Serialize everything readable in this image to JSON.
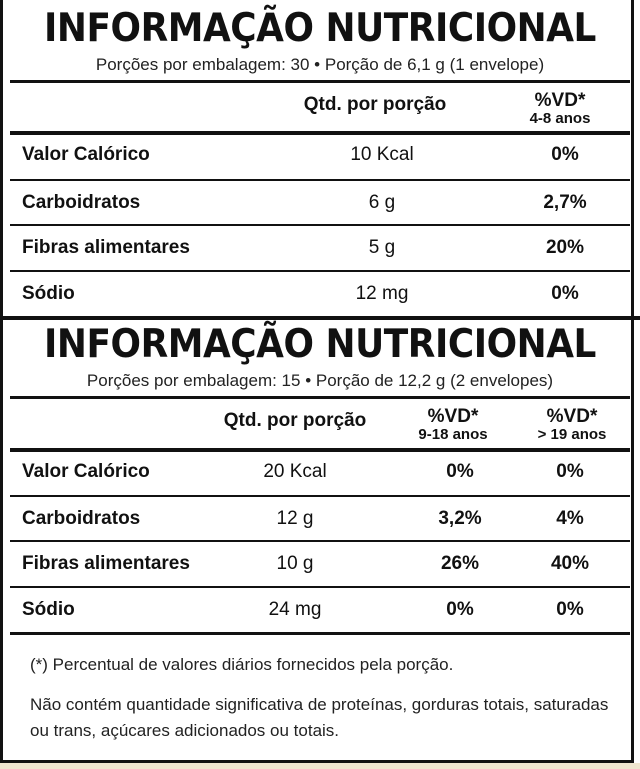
{
  "panel1": {
    "title": "INFORMAÇÃO NUTRICIONAL",
    "subtitle": "Porções por embalagem: 30 • Porção de 6,1 g (1 envelope)",
    "header": {
      "qty": "Qtd. por porção",
      "vd_label": "%VD*",
      "vd_group": "4-8 anos"
    },
    "rows": [
      {
        "name": "Valor Calórico",
        "qty": "10 Kcal",
        "vd": "0%"
      },
      {
        "name": "Carboidratos",
        "qty": "6 g",
        "vd": "2,7%"
      },
      {
        "name": "Fibras alimentares",
        "qty": "5 g",
        "vd": "20%"
      },
      {
        "name": "Sódio",
        "qty": "12 mg",
        "vd": "0%"
      }
    ]
  },
  "panel2": {
    "title": "INFORMAÇÃO NUTRICIONAL",
    "subtitle": "Porções por embalagem: 15 • Porção de 12,2 g (2 envelopes)",
    "header": {
      "qty": "Qtd. por porção",
      "vd1_label": "%VD*",
      "vd1_group": "9-18 anos",
      "vd2_label": "%VD*",
      "vd2_group": "> 19 anos"
    },
    "rows": [
      {
        "name": "Valor Calórico",
        "qty": "20 Kcal",
        "vd1": "0%",
        "vd2": "0%"
      },
      {
        "name": "Carboidratos",
        "qty": "12 g",
        "vd1": "3,2%",
        "vd2": "4%"
      },
      {
        "name": "Fibras alimentares",
        "qty": "10 g",
        "vd1": "26%",
        "vd2": "40%"
      },
      {
        "name": "Sódio",
        "qty": "24 mg",
        "vd1": "0%",
        "vd2": "0%"
      }
    ]
  },
  "footnotes": {
    "vd_note": "(*) Percentual de valores diários fornecidos pela porção.",
    "content_note": "Não contém quantidade significativa de proteínas, gorduras totais, saturadas ou trans, açúcares adicionados ou totais."
  }
}
